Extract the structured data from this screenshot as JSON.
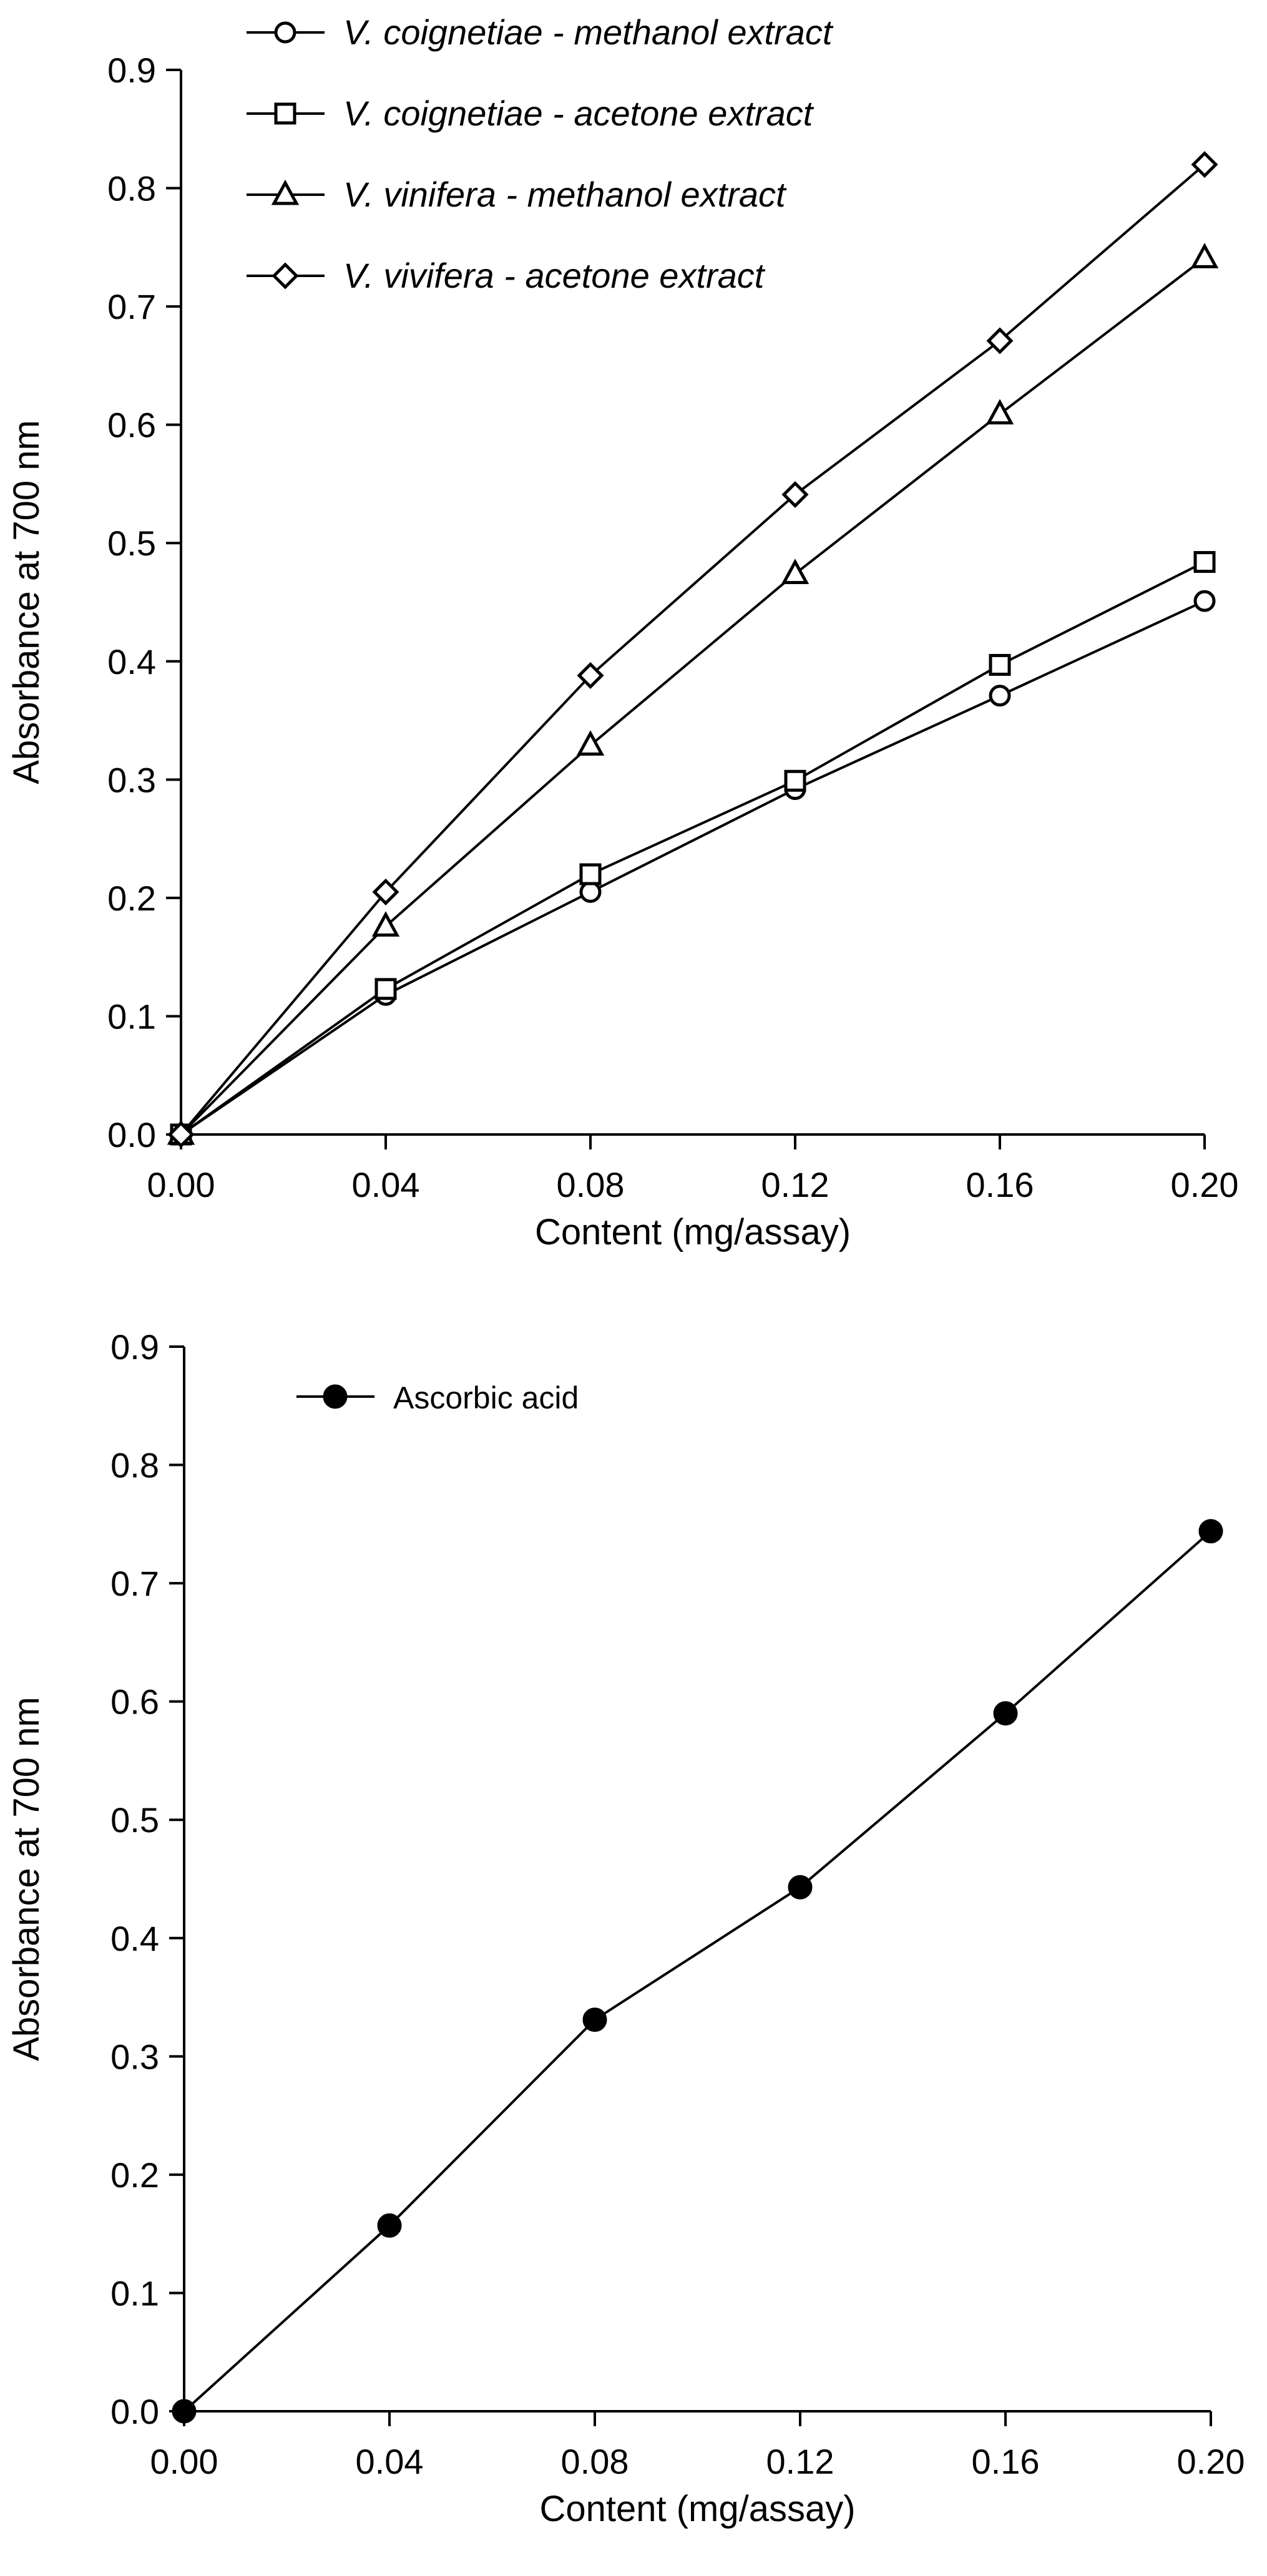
{
  "chart_data": [
    {
      "type": "line",
      "title": "",
      "xlabel": "Content (mg/assay)",
      "ylabel": "Absorbance at 700 nm",
      "xlim": [
        0.0,
        0.2
      ],
      "ylim": [
        0.0,
        0.9
      ],
      "x_ticks": [
        "0.00",
        "0.04",
        "0.08",
        "0.12",
        "0.16",
        "0.20"
      ],
      "y_ticks": [
        "0.0",
        "0.1",
        "0.2",
        "0.3",
        "0.4",
        "0.5",
        "0.6",
        "0.7",
        "0.8",
        "0.9"
      ],
      "x": [
        0.0,
        0.04,
        0.08,
        0.12,
        0.16,
        0.2
      ],
      "grid": false,
      "legend_position": "top-left",
      "series": [
        {
          "name_italic": "V. coignetiae - methanol extract",
          "marker": "circle",
          "fill": "#ffffff",
          "values": [
            0.0,
            0.118,
            0.205,
            0.292,
            0.371,
            0.451
          ]
        },
        {
          "name_italic": "V. coignetiae - acetone extract",
          "marker": "square",
          "fill": "#ffffff",
          "values": [
            0.0,
            0.123,
            0.22,
            0.299,
            0.397,
            0.484
          ]
        },
        {
          "name_italic": "V. vinifera - methanol extract",
          "marker": "triangle",
          "fill": "#ffffff",
          "values": [
            0.0,
            0.176,
            0.329,
            0.474,
            0.609,
            0.741
          ]
        },
        {
          "name_italic": "V. vivifera - acetone extract",
          "marker": "diamond",
          "fill": "#ffffff",
          "values": [
            0.0,
            0.205,
            0.388,
            0.541,
            0.671,
            0.82
          ]
        }
      ]
    },
    {
      "type": "line",
      "title": "",
      "xlabel": "Content (mg/assay)",
      "ylabel": "Absorbance at 700 nm",
      "xlim": [
        0.0,
        0.2
      ],
      "ylim": [
        0.0,
        0.9
      ],
      "x_ticks": [
        "0.00",
        "0.04",
        "0.08",
        "0.12",
        "0.16",
        "0.20"
      ],
      "y_ticks": [
        "0.0",
        "0.1",
        "0.2",
        "0.3",
        "0.4",
        "0.5",
        "0.6",
        "0.7",
        "0.8",
        "0.9"
      ],
      "x": [
        0.0,
        0.04,
        0.08,
        0.12,
        0.16,
        0.2
      ],
      "grid": false,
      "legend_position": "top-left",
      "series": [
        {
          "name": "Ascorbic acid",
          "marker": "circle",
          "fill": "#000000",
          "values": [
            0.0,
            0.157,
            0.331,
            0.443,
            0.59,
            0.744
          ]
        }
      ]
    }
  ]
}
